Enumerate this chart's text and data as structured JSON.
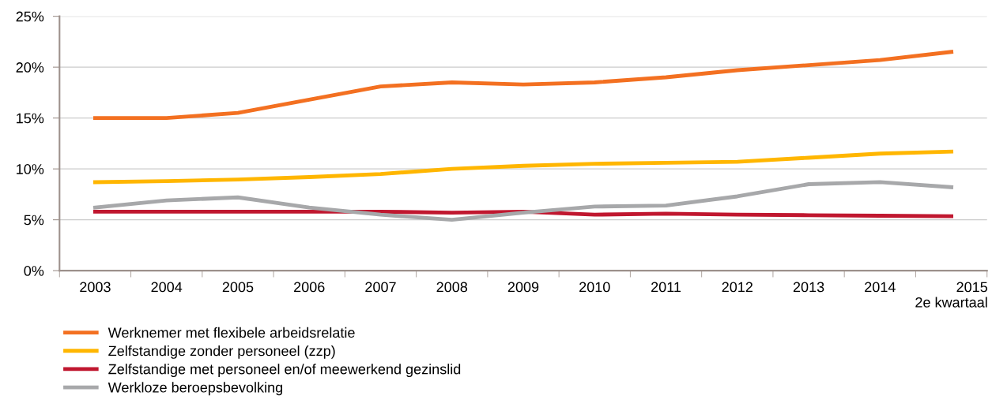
{
  "chart_data": {
    "type": "line",
    "categories": [
      "2003",
      "2004",
      "2005",
      "2006",
      "2007",
      "2008",
      "2009",
      "2010",
      "2011",
      "2012",
      "2013",
      "2014",
      "2015\n2e kwartaal"
    ],
    "series": [
      {
        "name": "Werknemer met flexibele arbeidsrelatie",
        "color": "#f37021",
        "values": [
          15.0,
          15.0,
          15.5,
          16.8,
          18.1,
          18.5,
          18.3,
          18.5,
          19.0,
          19.7,
          20.2,
          20.7,
          21.5
        ]
      },
      {
        "name": "Zelfstandige zonder personeel (zzp)",
        "color": "#ffb600",
        "values": [
          8.7,
          8.8,
          8.95,
          9.2,
          9.5,
          10.0,
          10.3,
          10.5,
          10.6,
          10.7,
          11.1,
          11.5,
          11.7
        ]
      },
      {
        "name": "Zelfstandige met personeel en/of meewerkend gezinslid",
        "color": "#c0172f",
        "values": [
          5.8,
          5.8,
          5.8,
          5.8,
          5.8,
          5.7,
          5.8,
          5.5,
          5.6,
          5.5,
          5.45,
          5.4,
          5.35
        ]
      },
      {
        "name": "Werkloze beroepsbevolking",
        "color": "#a7a8aa",
        "values": [
          6.2,
          6.9,
          7.2,
          6.2,
          5.5,
          5.0,
          5.7,
          6.3,
          6.4,
          7.3,
          8.5,
          8.7,
          8.2
        ]
      }
    ],
    "ylim": [
      0,
      25
    ],
    "yticks": [
      {
        "value": 0,
        "label": "0%"
      },
      {
        "value": 5,
        "label": "5%"
      },
      {
        "value": 10,
        "label": "10%"
      },
      {
        "value": 15,
        "label": "15%"
      },
      {
        "value": 20,
        "label": "20%"
      },
      {
        "value": 25,
        "label": "25%"
      }
    ],
    "grid": "y",
    "legend": "bottom",
    "marker": "none",
    "line_style": "solid"
  }
}
